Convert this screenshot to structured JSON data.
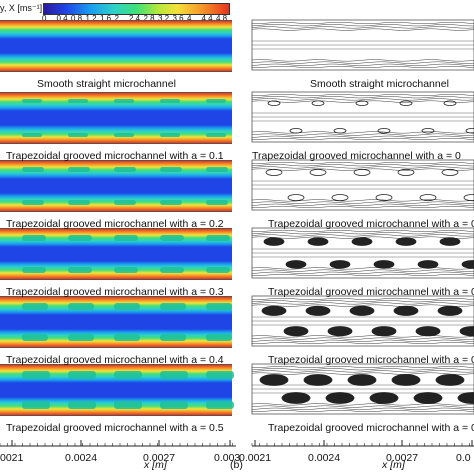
{
  "colorbar": {
    "title": "y, X [ms⁻¹]",
    "ticks": [
      "0",
      "0.4",
      "0.8",
      "1.2",
      "1.6",
      "2",
      "2.4",
      "2.8",
      "3.2",
      "3.6",
      "4",
      "4.4",
      "4.8"
    ]
  },
  "captions": {
    "left": [
      "Smooth straight microchannel",
      "Trapezoidal grooved microchannel with a = 0.1",
      "Trapezoidal grooved microchannel with a = 0.2",
      "Trapezoidal grooved microchannel with a = 0.3",
      "Trapezoidal grooved microchannel with a = 0.4",
      "Trapezoidal grooved microchannel with a = 0.5"
    ],
    "right": [
      "Smooth straight microchannel",
      "Trapezoidal grooved microchannel with a = 0",
      "Trapezoidal grooved microchannel with a = 0",
      "Trapezoidal grooved microchannel with a = 0",
      "Trapezoidal grooved microchannel with a = 0",
      "Trapezoidal grooved microchannel with a = 0."
    ]
  },
  "x_axis": {
    "left_ticks": [
      "0021",
      "0.0024",
      "0.0027",
      "0.003"
    ],
    "right_ticks": [
      "0.0021",
      "0.0024",
      "0.0027",
      "0.0"
    ],
    "label": "x [m]",
    "panel_b": "(b)"
  },
  "colors": {
    "field_low": "#1a3fd6",
    "field_mid": "#2fd1c8",
    "field_high": "#e8321c",
    "streamline": "#3a3a3a"
  }
}
